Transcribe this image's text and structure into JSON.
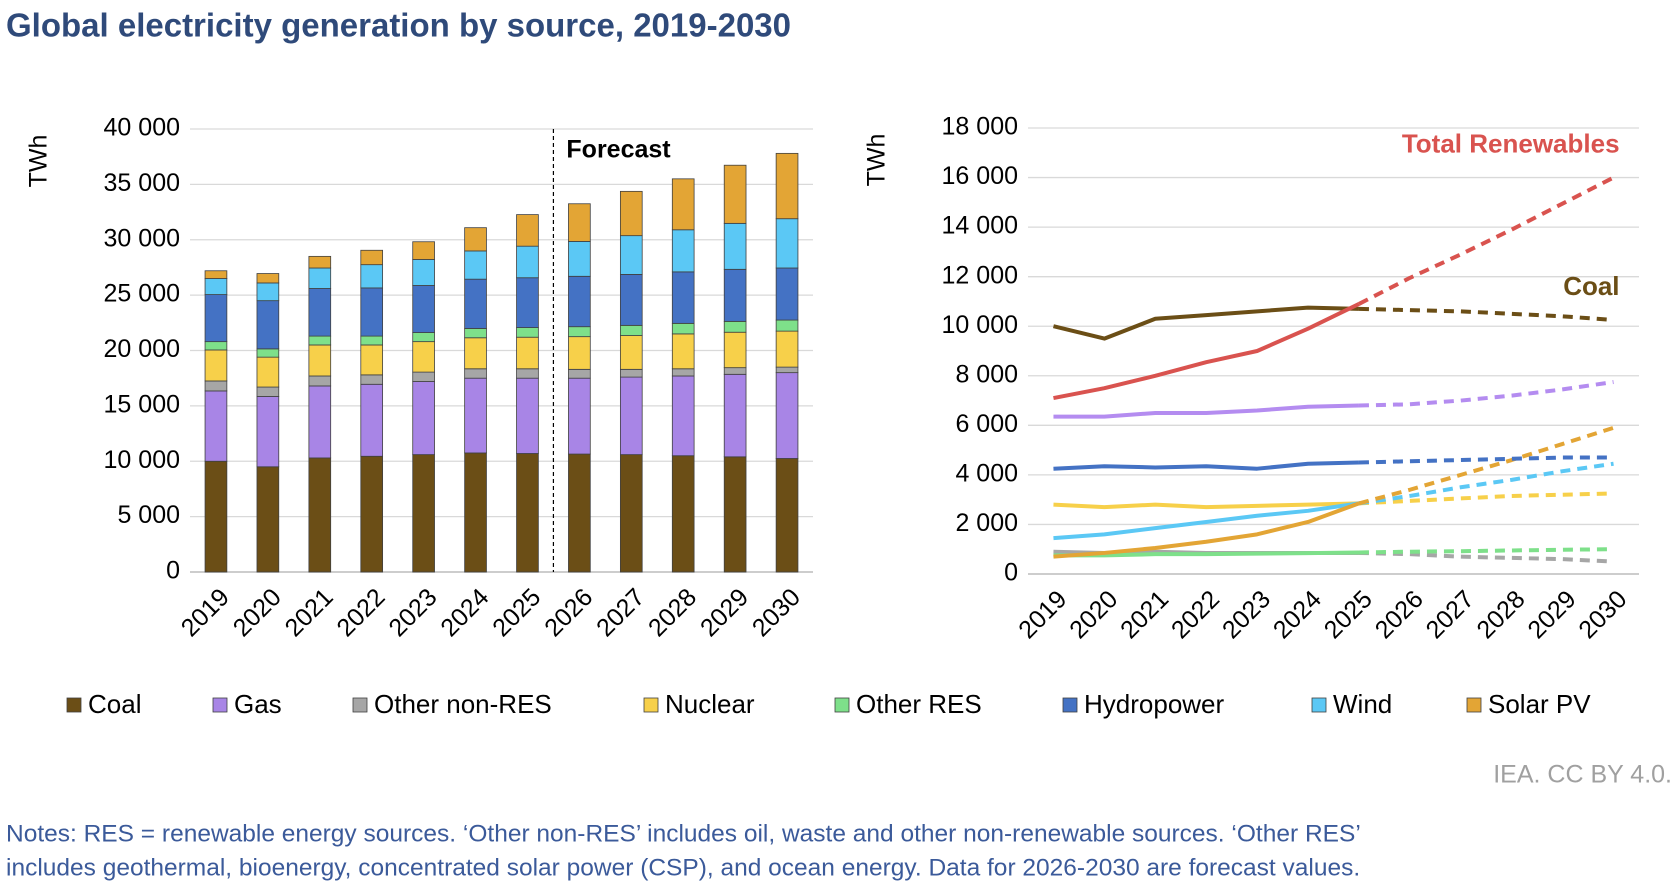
{
  "title": "Global electricity generation by source, 2019-2030",
  "source": "IEA. CC BY 4.0.",
  "notes": [
    "Notes: RES = renewable energy sources. ‘Other non-RES’ includes oil, waste and other non-renewable sources. ‘Other RES’",
    "includes geothermal, bioenergy, concentrated solar power (CSP), and ocean energy. Data for 2026-2030 are forecast values."
  ],
  "chart_data": [
    {
      "type": "stacked_bar",
      "y_label": "TWh",
      "forecast_label": "Forecast",
      "forecast_start": "2026",
      "grid": true,
      "categories": [
        "2019",
        "2020",
        "2021",
        "2022",
        "2023",
        "2024",
        "2025",
        "2026",
        "2027",
        "2028",
        "2029",
        "2030"
      ],
      "ylim": [
        0,
        40000
      ],
      "yticks": [
        0,
        {
          "value": 5000,
          "label": "5 000"
        },
        {
          "value": 10000,
          "label": "10 000"
        },
        {
          "value": 15000,
          "label": "15 000"
        },
        {
          "value": 20000,
          "label": "20 000"
        },
        {
          "value": 25000,
          "label": "25 000"
        },
        {
          "value": 30000,
          "label": "30 000"
        },
        {
          "value": 35000,
          "label": "35 000"
        },
        {
          "value": 40000,
          "label": "40 000"
        }
      ],
      "series": [
        {
          "name": "Coal",
          "color": "#6b4e16",
          "values": [
            10000,
            9500,
            10300,
            10450,
            10600,
            10750,
            10700,
            10650,
            10600,
            10500,
            10400,
            10250
          ]
        },
        {
          "name": "Gas",
          "color": "#a885e6",
          "values": [
            6350,
            6350,
            6500,
            6500,
            6600,
            6750,
            6800,
            6850,
            7000,
            7200,
            7450,
            7750
          ]
        },
        {
          "name": "Other non-RES",
          "color": "#a6a6a6",
          "values": [
            900,
            850,
            900,
            850,
            850,
            850,
            850,
            800,
            700,
            650,
            600,
            500
          ]
        },
        {
          "name": "Nuclear",
          "color": "#f7d04a",
          "values": [
            2800,
            2700,
            2800,
            2700,
            2750,
            2800,
            2850,
            2950,
            3050,
            3150,
            3200,
            3250
          ]
        },
        {
          "name": "Other RES",
          "color": "#7ee08a",
          "values": [
            750,
            750,
            800,
            800,
            820,
            840,
            870,
            900,
            920,
            950,
            980,
            1000
          ]
        },
        {
          "name": "Hydropower",
          "color": "#4472c4",
          "values": [
            4250,
            4350,
            4300,
            4350,
            4250,
            4450,
            4500,
            4550,
            4600,
            4650,
            4700,
            4700
          ]
        },
        {
          "name": "Wind",
          "color": "#5bc8f5",
          "values": [
            1450,
            1600,
            1850,
            2100,
            2350,
            2550,
            2850,
            3150,
            3500,
            3800,
            4150,
            4450
          ]
        },
        {
          "name": "Solar PV",
          "color": "#e3a535",
          "values": [
            700,
            850,
            1050,
            1300,
            1600,
            2100,
            2850,
            3400,
            4000,
            4600,
            5250,
            5900
          ]
        }
      ]
    },
    {
      "type": "line",
      "y_label": "TWh",
      "forecast_start": "2026",
      "grid": true,
      "categories": [
        "2019",
        "2020",
        "2021",
        "2022",
        "2023",
        "2024",
        "2025",
        "2026",
        "2027",
        "2028",
        "2029",
        "2030"
      ],
      "ylim": [
        0,
        18000
      ],
      "yticks": [
        0,
        {
          "value": 2000,
          "label": "2 000"
        },
        {
          "value": 4000,
          "label": "4 000"
        },
        {
          "value": 6000,
          "label": "6 000"
        },
        {
          "value": 8000,
          "label": "8 000"
        },
        {
          "value": 10000,
          "label": "10 000"
        },
        {
          "value": 12000,
          "label": "12 000"
        },
        {
          "value": 14000,
          "label": "14 000"
        },
        {
          "value": 16000,
          "label": "16 000"
        },
        {
          "value": 18000,
          "label": "18 000"
        }
      ],
      "series": [
        {
          "color": "#a6a6a6",
          "values": [
            900,
            850,
            900,
            850,
            850,
            850,
            850,
            800,
            700,
            650,
            600,
            500
          ]
        },
        {
          "color": "#7ee08a",
          "values": [
            750,
            750,
            800,
            800,
            820,
            840,
            870,
            900,
            920,
            950,
            980,
            1000
          ]
        },
        {
          "color": "#f7d04a",
          "values": [
            2800,
            2700,
            2800,
            2700,
            2750,
            2800,
            2850,
            2950,
            3050,
            3150,
            3200,
            3250
          ]
        },
        {
          "color": "#5bc8f5",
          "values": [
            1450,
            1600,
            1850,
            2100,
            2350,
            2550,
            2850,
            3150,
            3500,
            3800,
            4150,
            4450
          ]
        },
        {
          "color": "#e3a535",
          "values": [
            700,
            850,
            1050,
            1300,
            1600,
            2100,
            2850,
            3400,
            4000,
            4600,
            5250,
            5900
          ]
        },
        {
          "color": "#4472c4",
          "values": [
            4250,
            4350,
            4300,
            4350,
            4250,
            4450,
            4500,
            4550,
            4600,
            4650,
            4700,
            4700
          ]
        },
        {
          "color": "#b48cf0",
          "values": [
            6350,
            6350,
            6500,
            6500,
            6600,
            6750,
            6800,
            6850,
            7000,
            7200,
            7450,
            7750
          ]
        },
        {
          "name": "Coal",
          "color": "#6b4e16",
          "values": [
            10000,
            9500,
            10300,
            10450,
            10600,
            10750,
            10700,
            10650,
            10600,
            10500,
            10400,
            10250
          ]
        },
        {
          "name": "Total Renewables",
          "color": "#d9534f",
          "values": [
            7100,
            7500,
            8000,
            8550,
            9000,
            9900,
            10900,
            11950,
            12900,
            13900,
            14950,
            16000
          ]
        }
      ]
    }
  ]
}
